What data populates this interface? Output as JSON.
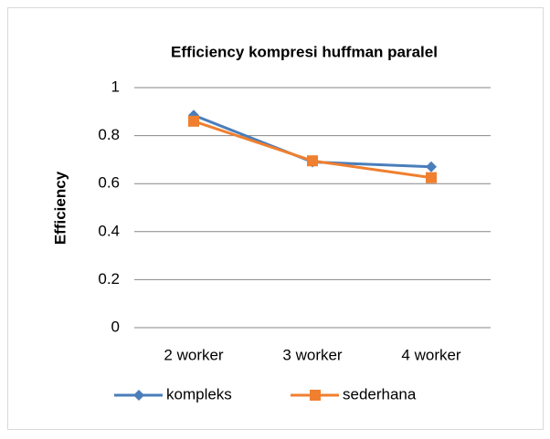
{
  "chart_data": {
    "type": "line",
    "title": "Efficiency kompresi huffman paralel",
    "y_label": "Efficiency",
    "categories": [
      "2 worker",
      "3 worker",
      "4 worker"
    ],
    "series": [
      {
        "name": "kompleks",
        "color": "#4a7ebb",
        "marker": "diamond",
        "values": [
          0.885,
          0.69,
          0.67
        ]
      },
      {
        "name": "sederhana",
        "color": "#f07f2f",
        "marker": "square",
        "values": [
          0.86,
          0.695,
          0.625
        ]
      }
    ],
    "ylim": [
      0,
      1
    ],
    "yticks": [
      0,
      0.2,
      0.4,
      0.6,
      0.8,
      1
    ],
    "grid": true,
    "legend": "bottom"
  }
}
